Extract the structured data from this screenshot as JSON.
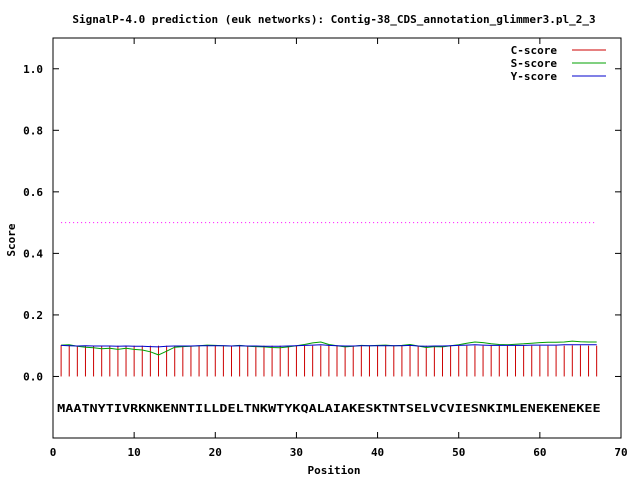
{
  "chart_data": {
    "type": "line",
    "title": "SignalP-4.0 prediction (euk networks): Contig-38_CDS_annotation_glimmer3.pl_2_3",
    "xlabel": "Position",
    "ylabel": "Score",
    "xlim": [
      0,
      70
    ],
    "ylim": [
      -0.2,
      1.1
    ],
    "x_ticks": [
      "0",
      "10",
      "20",
      "30",
      "40",
      "50",
      "60",
      "70"
    ],
    "y_ticks": [
      "0.0",
      "0.2",
      "0.4",
      "0.6",
      "0.8",
      "1.0"
    ],
    "legend": {
      "placement": "top-right"
    },
    "threshold": {
      "value": 0.5,
      "color": "#ff00ff"
    },
    "sequence": "MAATNYTIVRKNKENNTILLDELTNKWTYKQALAIAKESKTNTSELVCVIESNKIMLENEKENEKEE",
    "series": [
      {
        "name": "C-score",
        "color": "#cc0000",
        "style": "impulses",
        "values": [
          0.102,
          0.101,
          0.1,
          0.1,
          0.1,
          0.1,
          0.1,
          0.1,
          0.1,
          0.1,
          0.1,
          0.1,
          0.1,
          0.1,
          0.1,
          0.1,
          0.1,
          0.1,
          0.1,
          0.1,
          0.1,
          0.1,
          0.1,
          0.1,
          0.1,
          0.1,
          0.1,
          0.1,
          0.1,
          0.1,
          0.1,
          0.1,
          0.1,
          0.101,
          0.101,
          0.1,
          0.1,
          0.1,
          0.1,
          0.1,
          0.1,
          0.1,
          0.1,
          0.101,
          0.1,
          0.1,
          0.1,
          0.1,
          0.1,
          0.1,
          0.1,
          0.1,
          0.1,
          0.1,
          0.1,
          0.1,
          0.1,
          0.1,
          0.1,
          0.1,
          0.1,
          0.1,
          0.1,
          0.101,
          0.101,
          0.1,
          0.1
        ]
      },
      {
        "name": "S-score",
        "color": "#00a000",
        "style": "line",
        "values": [
          0.102,
          0.103,
          0.098,
          0.095,
          0.093,
          0.09,
          0.092,
          0.088,
          0.092,
          0.088,
          0.086,
          0.08,
          0.07,
          0.082,
          0.095,
          0.097,
          0.098,
          0.1,
          0.102,
          0.101,
          0.1,
          0.099,
          0.101,
          0.098,
          0.097,
          0.096,
          0.094,
          0.093,
          0.096,
          0.1,
          0.104,
          0.109,
          0.112,
          0.104,
          0.1,
          0.096,
          0.098,
          0.101,
          0.1,
          0.101,
          0.102,
          0.1,
          0.101,
          0.104,
          0.099,
          0.094,
          0.097,
          0.096,
          0.1,
          0.103,
          0.108,
          0.112,
          0.11,
          0.106,
          0.104,
          0.103,
          0.105,
          0.106,
          0.108,
          0.11,
          0.111,
          0.111,
          0.112,
          0.115,
          0.113,
          0.112,
          0.112
        ]
      },
      {
        "name": "Y-score",
        "color": "#0000cc",
        "style": "line",
        "values": [
          0.101,
          0.1,
          0.099,
          0.1,
          0.099,
          0.099,
          0.099,
          0.098,
          0.099,
          0.098,
          0.098,
          0.097,
          0.096,
          0.098,
          0.099,
          0.099,
          0.099,
          0.1,
          0.1,
          0.1,
          0.1,
          0.099,
          0.1,
          0.099,
          0.099,
          0.098,
          0.098,
          0.098,
          0.099,
          0.1,
          0.101,
          0.102,
          0.103,
          0.101,
          0.1,
          0.099,
          0.099,
          0.1,
          0.1,
          0.1,
          0.1,
          0.1,
          0.1,
          0.101,
          0.099,
          0.098,
          0.099,
          0.099,
          0.1,
          0.101,
          0.102,
          0.103,
          0.102,
          0.101,
          0.101,
          0.101,
          0.101,
          0.101,
          0.102,
          0.102,
          0.102,
          0.102,
          0.103,
          0.103,
          0.103,
          0.103,
          0.103
        ]
      }
    ]
  }
}
